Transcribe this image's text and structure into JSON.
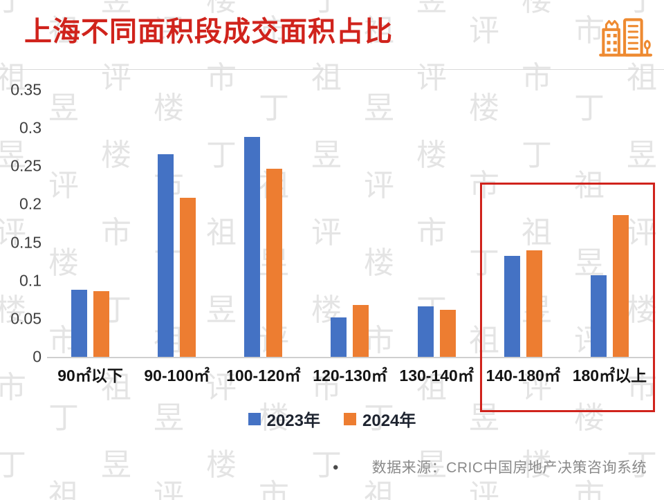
{
  "header": {
    "title": "上海不同面积段成交面积占比"
  },
  "colors": {
    "accent_red": "#d0231c",
    "bar_blue": "#4472C4",
    "bar_orange": "#ED7D31",
    "watermark_gray": "#d9d9d9"
  },
  "chart_data": {
    "type": "bar",
    "title": "上海不同面积段成交面积占比",
    "categories": [
      "90㎡以下",
      "90-100㎡",
      "100-120㎡",
      "120-130㎡",
      "130-140㎡",
      "140-180㎡",
      "180㎡以上"
    ],
    "series": [
      {
        "name": "2023年",
        "color": "#4472C4",
        "values": [
          0.088,
          0.266,
          0.288,
          0.052,
          0.066,
          0.132,
          0.107
        ]
      },
      {
        "name": "2024年",
        "color": "#ED7D31",
        "values": [
          0.086,
          0.209,
          0.247,
          0.068,
          0.062,
          0.14,
          0.186
        ]
      }
    ],
    "ylim": [
      0,
      0.35
    ],
    "yticks": [
      0,
      0.05,
      0.1,
      0.15,
      0.2,
      0.25,
      0.3,
      0.35
    ],
    "ytick_labels": [
      "0",
      "0.05",
      "0.1",
      "0.15",
      "0.2",
      "0.25",
      "0.3",
      "0.35"
    ],
    "grid": false,
    "legend_position": "bottom",
    "highlight": {
      "categories": [
        "140-180㎡",
        "180㎡以上"
      ],
      "color": "#d0231c"
    }
  },
  "legend": [
    {
      "label": "2023年",
      "color": "#4472C4"
    },
    {
      "label": "2024年",
      "color": "#ED7D31"
    }
  ],
  "footer": {
    "bullet": "●",
    "source": "数据来源：CRIC中国房地产决策咨询系统"
  },
  "watermark": {
    "text": "丁祖昱评楼市"
  }
}
